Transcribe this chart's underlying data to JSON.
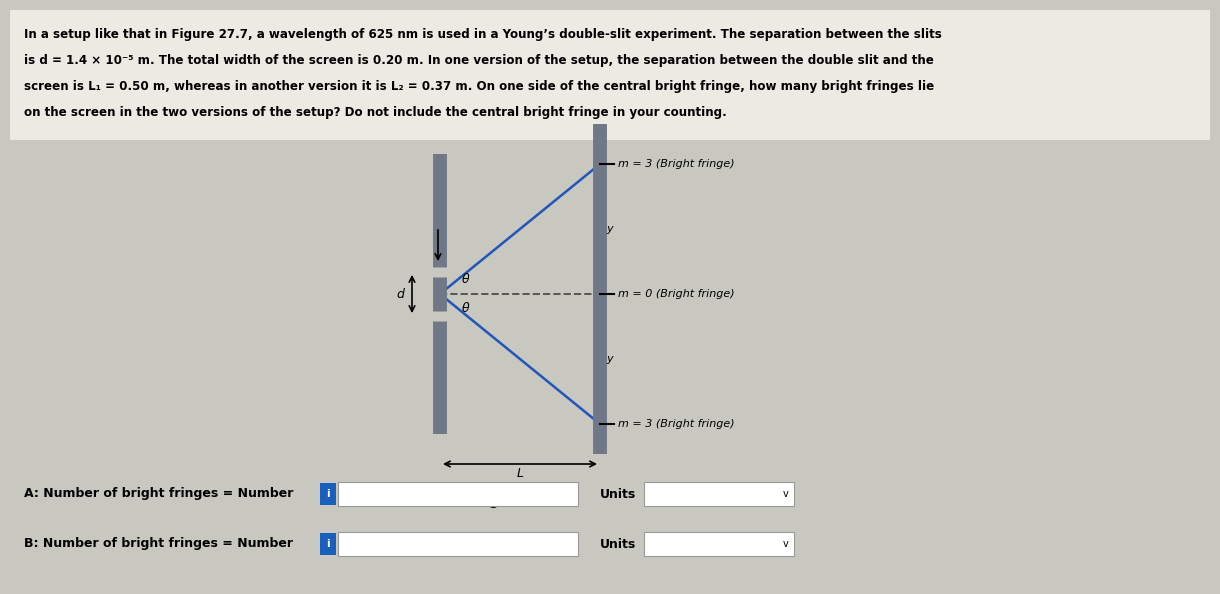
{
  "background_color": "#c8c8c0",
  "top_bg": "#f0eeea",
  "text_lines": [
    "In a setup like that in Figure 27.7, a wavelength of 625 nm is used in a Young’s double-slit experiment. The separation between the slits",
    "is d = 1.4 × 10⁻⁵ m. The total width of the screen is 0.20 m. In one version of the setup, the separation between the double slit and the",
    "screen is L₁ = 0.50 m, whereas in another version it is L₂ = 0.37 m. On one side of the central bright fringe, how many bright fringes lie",
    "on the screen in the two versions of the setup? Do not include the central bright fringe in your counting."
  ],
  "figure_caption": "Figure 27.7",
  "label_A": "A: Number of bright fringes = Number",
  "label_B": "B: Number of bright fringes = Number",
  "units_label": "Units",
  "m3_top_label": "m = 3 (Bright fringe)",
  "m0_label": "m = 0 (Bright fringe)",
  "m3_bot_label": "m = 3 (Bright fringe)",
  "y_label": "y",
  "d_label": "d",
  "theta_label": "θ",
  "L_label": "L",
  "info_icon_color": "#1a5fbd",
  "input_box_color": "#ffffff",
  "units_box_color": "#ffffff",
  "line_color": "#2255bb",
  "slit_color": "#707888",
  "screen_color": "#707888",
  "dashed_color": "#555555",
  "arrow_color": "#000000",
  "text_color": "#000000",
  "tick_mark_color": "#000000"
}
